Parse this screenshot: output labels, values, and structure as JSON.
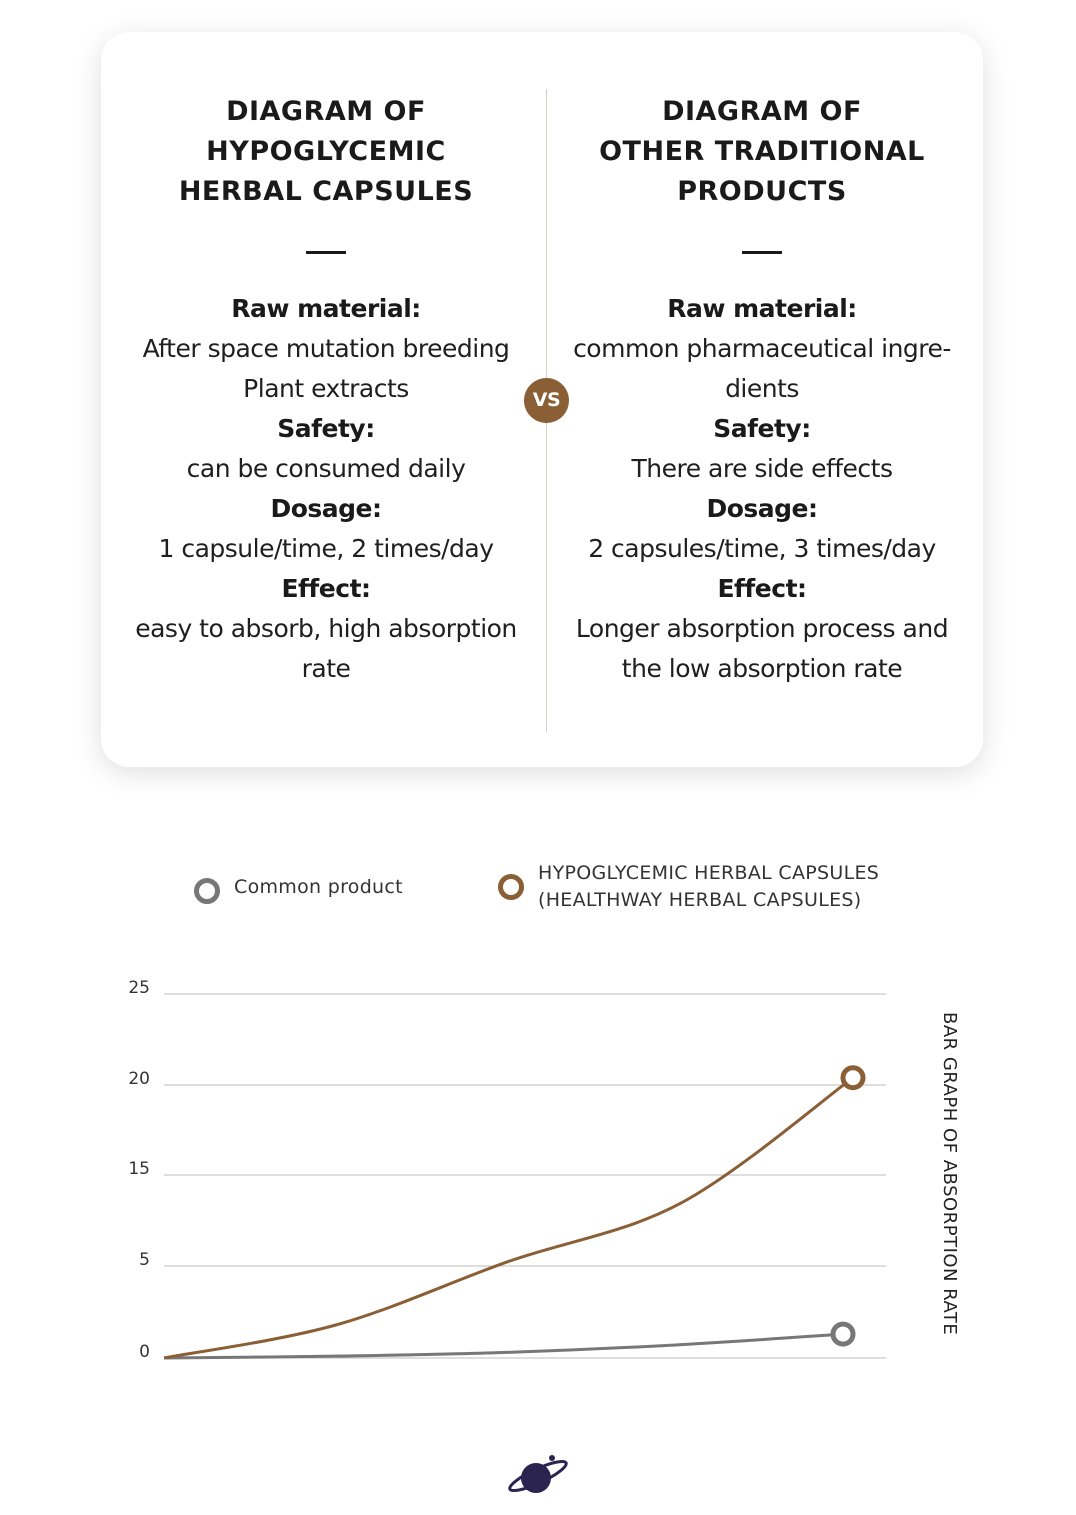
{
  "comparison": {
    "left": {
      "title_lines": [
        "DIAGRAM OF",
        "HYPOGLYCEMIC",
        "HERBAL CAPSULES"
      ],
      "raw_material_label": "Raw material:",
      "raw_material_lines": [
        "After space mutation breeding",
        "Plant extracts"
      ],
      "safety_label": "Safety:",
      "safety_value": "can be consumed daily",
      "dosage_label": "Dosage:",
      "dosage_value": "1 capsule/time, 2 times/day",
      "effect_label": "Effect:",
      "effect_lines": [
        "easy to absorb, high absorption",
        "rate"
      ]
    },
    "vs_label": "VS",
    "right": {
      "title_lines": [
        "DIAGRAM OF",
        "OTHER TRADITIONAL",
        "PRODUCTS"
      ],
      "raw_material_label": "Raw material:",
      "raw_material_lines": [
        "common pharmaceutical ingre-",
        "dients"
      ],
      "safety_label": "Safety:",
      "safety_value": "There are side effects",
      "dosage_label": "Dosage:",
      "dosage_value": "2 capsules/time, 3 times/day",
      "effect_label": "Effect:",
      "effect_lines": [
        "Longer absorption process and",
        "the low absorption rate"
      ]
    }
  },
  "legend": {
    "common": "Common product",
    "hypo_line1": "HYPOGLYCEMIC HERBAL CAPSULES",
    "hypo_line2": "(HEALTHWAY HERBAL CAPSULES)"
  },
  "colors": {
    "brown": "#8a5f35",
    "gray": "#777777",
    "grid": "#bdbdbd"
  },
  "logo_icon": "planet-icon",
  "chart_data": {
    "type": "line",
    "ylabel": "BAR GRAPH OF ABSORPTION RATE",
    "y_ticks": [
      0,
      5,
      15,
      20,
      25
    ],
    "series": [
      {
        "name": "Common product",
        "color": "#777777",
        "x": [
          0,
          0.25,
          0.5,
          0.75,
          1.0
        ],
        "values": [
          0,
          0.1,
          0.3,
          0.7,
          1.3
        ]
      },
      {
        "name": "HYPOGLYCEMIC HERBAL CAPSULES (HEALTHWAY HERBAL CAPSULES)",
        "color": "#8a5f35",
        "x": [
          0,
          0.25,
          0.5,
          0.75,
          1.0
        ],
        "values": [
          0,
          1.8,
          5.5,
          11.9,
          20.4
        ]
      }
    ]
  }
}
